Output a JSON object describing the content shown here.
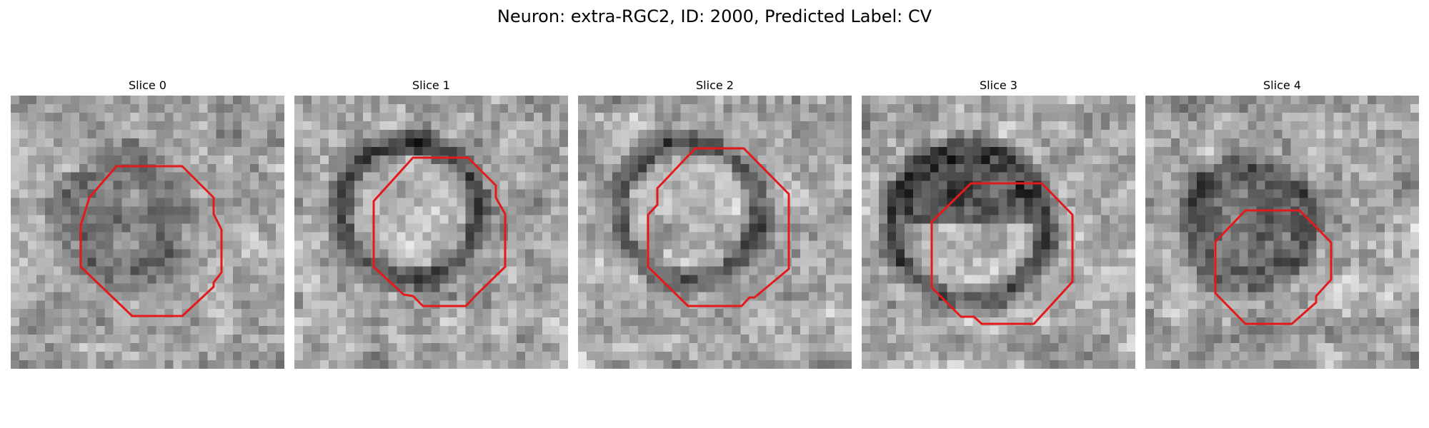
{
  "figure": {
    "title": "Neuron: extra-RGC2, ID: 2000, Predicted Label: CV",
    "contour_color": "#e31a1c"
  },
  "panels": [
    {
      "title": "Slice 0"
    },
    {
      "title": "Slice 1"
    },
    {
      "title": "Slice 2"
    },
    {
      "title": "Slice 3"
    },
    {
      "title": "Slice 4"
    }
  ]
}
